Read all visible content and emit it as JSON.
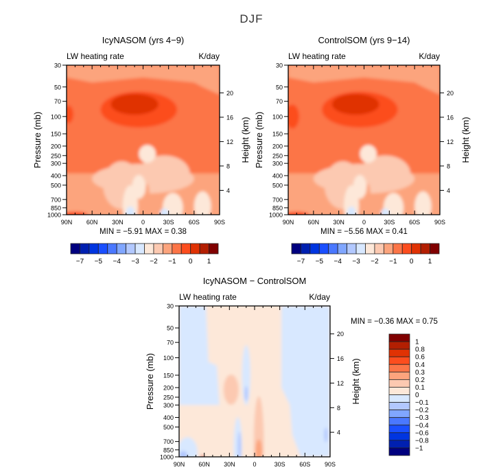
{
  "page": {
    "title": "DJF"
  },
  "chart_data": [
    {
      "id": "icy",
      "type": "heatmap",
      "title": "IcyNASOM (yrs 4−9)",
      "left_label": "LW heating rate",
      "right_label": "K/day",
      "ylabel": "Pressure (mb)",
      "ylabel_right": "Height (km)",
      "xlabel": "",
      "x_ticks": [
        "90N",
        "60N",
        "30N",
        "0",
        "30S",
        "60S",
        "90S"
      ],
      "x_range": [
        90,
        -90
      ],
      "y_ticks": [
        "30",
        "50",
        "70",
        "100",
        "150",
        "200",
        "250",
        "300",
        "400",
        "500",
        "700",
        "850",
        "1000"
      ],
      "y_range_mb": [
        1000,
        30
      ],
      "y_ticks_right_km": [
        "20",
        "16",
        "12",
        "8",
        "4"
      ],
      "min_label": "MIN =",
      "min_value": "−5.91",
      "max_label": "MAX =",
      "max_value": "0.38",
      "colorbar": {
        "orientation": "horizontal",
        "levels": [
          "−7",
          "−5",
          "−4",
          "−3",
          "−2",
          "−1",
          "0",
          "1"
        ],
        "colors": [
          "#00007f",
          "#0020b0",
          "#0035e0",
          "#1a4fff",
          "#4a78ff",
          "#80a6ff",
          "#b2c8ff",
          "#d8e8ff",
          "#fde8d9",
          "#fcc9b1",
          "#fca47d",
          "#fc7547",
          "#fc4d1e",
          "#e03204",
          "#b31f02",
          "#800000"
        ]
      },
      "field_description": "Cooling strongest (dark red) near 100 mb between 45N and 15S; weak cooling (light) in tropical mid troposphere and near surface"
    },
    {
      "id": "control",
      "type": "heatmap",
      "title": "ControlSOM (yrs 9−14)",
      "left_label": "LW heating rate",
      "right_label": "K/day",
      "ylabel": "Pressure (mb)",
      "ylabel_right": "Height (km)",
      "x_ticks": [
        "90N",
        "60N",
        "30N",
        "0",
        "30S",
        "60S",
        "90S"
      ],
      "x_range": [
        90,
        -90
      ],
      "y_ticks": [
        "30",
        "50",
        "70",
        "100",
        "150",
        "200",
        "250",
        "300",
        "400",
        "500",
        "700",
        "850",
        "1000"
      ],
      "y_range_mb": [
        1000,
        30
      ],
      "y_ticks_right_km": [
        "20",
        "16",
        "12",
        "8",
        "4"
      ],
      "min_label": "MIN =",
      "min_value": "−5.56",
      "max_label": "MAX =",
      "max_value": "0.41",
      "colorbar": {
        "orientation": "horizontal",
        "levels": [
          "−7",
          "−5",
          "−4",
          "−3",
          "−2",
          "−1",
          "0",
          "1"
        ],
        "colors": [
          "#00007f",
          "#0020b0",
          "#0035e0",
          "#1a4fff",
          "#4a78ff",
          "#80a6ff",
          "#b2c8ff",
          "#d8e8ff",
          "#fde8d9",
          "#fcc9b1",
          "#fca47d",
          "#fc7547",
          "#fc4d1e",
          "#e03204",
          "#b31f02",
          "#800000"
        ]
      }
    },
    {
      "id": "diff",
      "type": "heatmap",
      "title": "IcyNASOM − ControlSOM",
      "left_label": "LW heating rate",
      "right_label": "K/day",
      "ylabel": "Pressure (mb)",
      "ylabel_right": "Height (km)",
      "x_ticks": [
        "90N",
        "60N",
        "30N",
        "0",
        "30S",
        "60S",
        "90S"
      ],
      "x_range": [
        90,
        -90
      ],
      "y_ticks": [
        "30",
        "50",
        "70",
        "100",
        "150",
        "200",
        "250",
        "300",
        "400",
        "500",
        "700",
        "850",
        "1000"
      ],
      "y_range_mb": [
        1000,
        30
      ],
      "y_ticks_right_km": [
        "20",
        "16",
        "12",
        "8",
        "4"
      ],
      "min_label": "MIN =",
      "min_value": "−0.36",
      "max_label": "MAX =",
      "max_value": "0.75",
      "colorbar": {
        "orientation": "vertical",
        "levels": [
          "1",
          "0.8",
          "0.6",
          "0.4",
          "0.3",
          "0.2",
          "0.1",
          "0",
          "−0.1",
          "−0.2",
          "−0.3",
          "−0.4",
          "−0.6",
          "−0.8",
          "−1"
        ],
        "colors": [
          "#800000",
          "#b31f02",
          "#e03204",
          "#fc4d1e",
          "#fc7547",
          "#fca47d",
          "#fcc9b1",
          "#fde8d9",
          "#d8e8ff",
          "#b2c8ff",
          "#80a6ff",
          "#4a78ff",
          "#1a4fff",
          "#0035e0",
          "#0020b0",
          "#00007f"
        ]
      }
    }
  ]
}
